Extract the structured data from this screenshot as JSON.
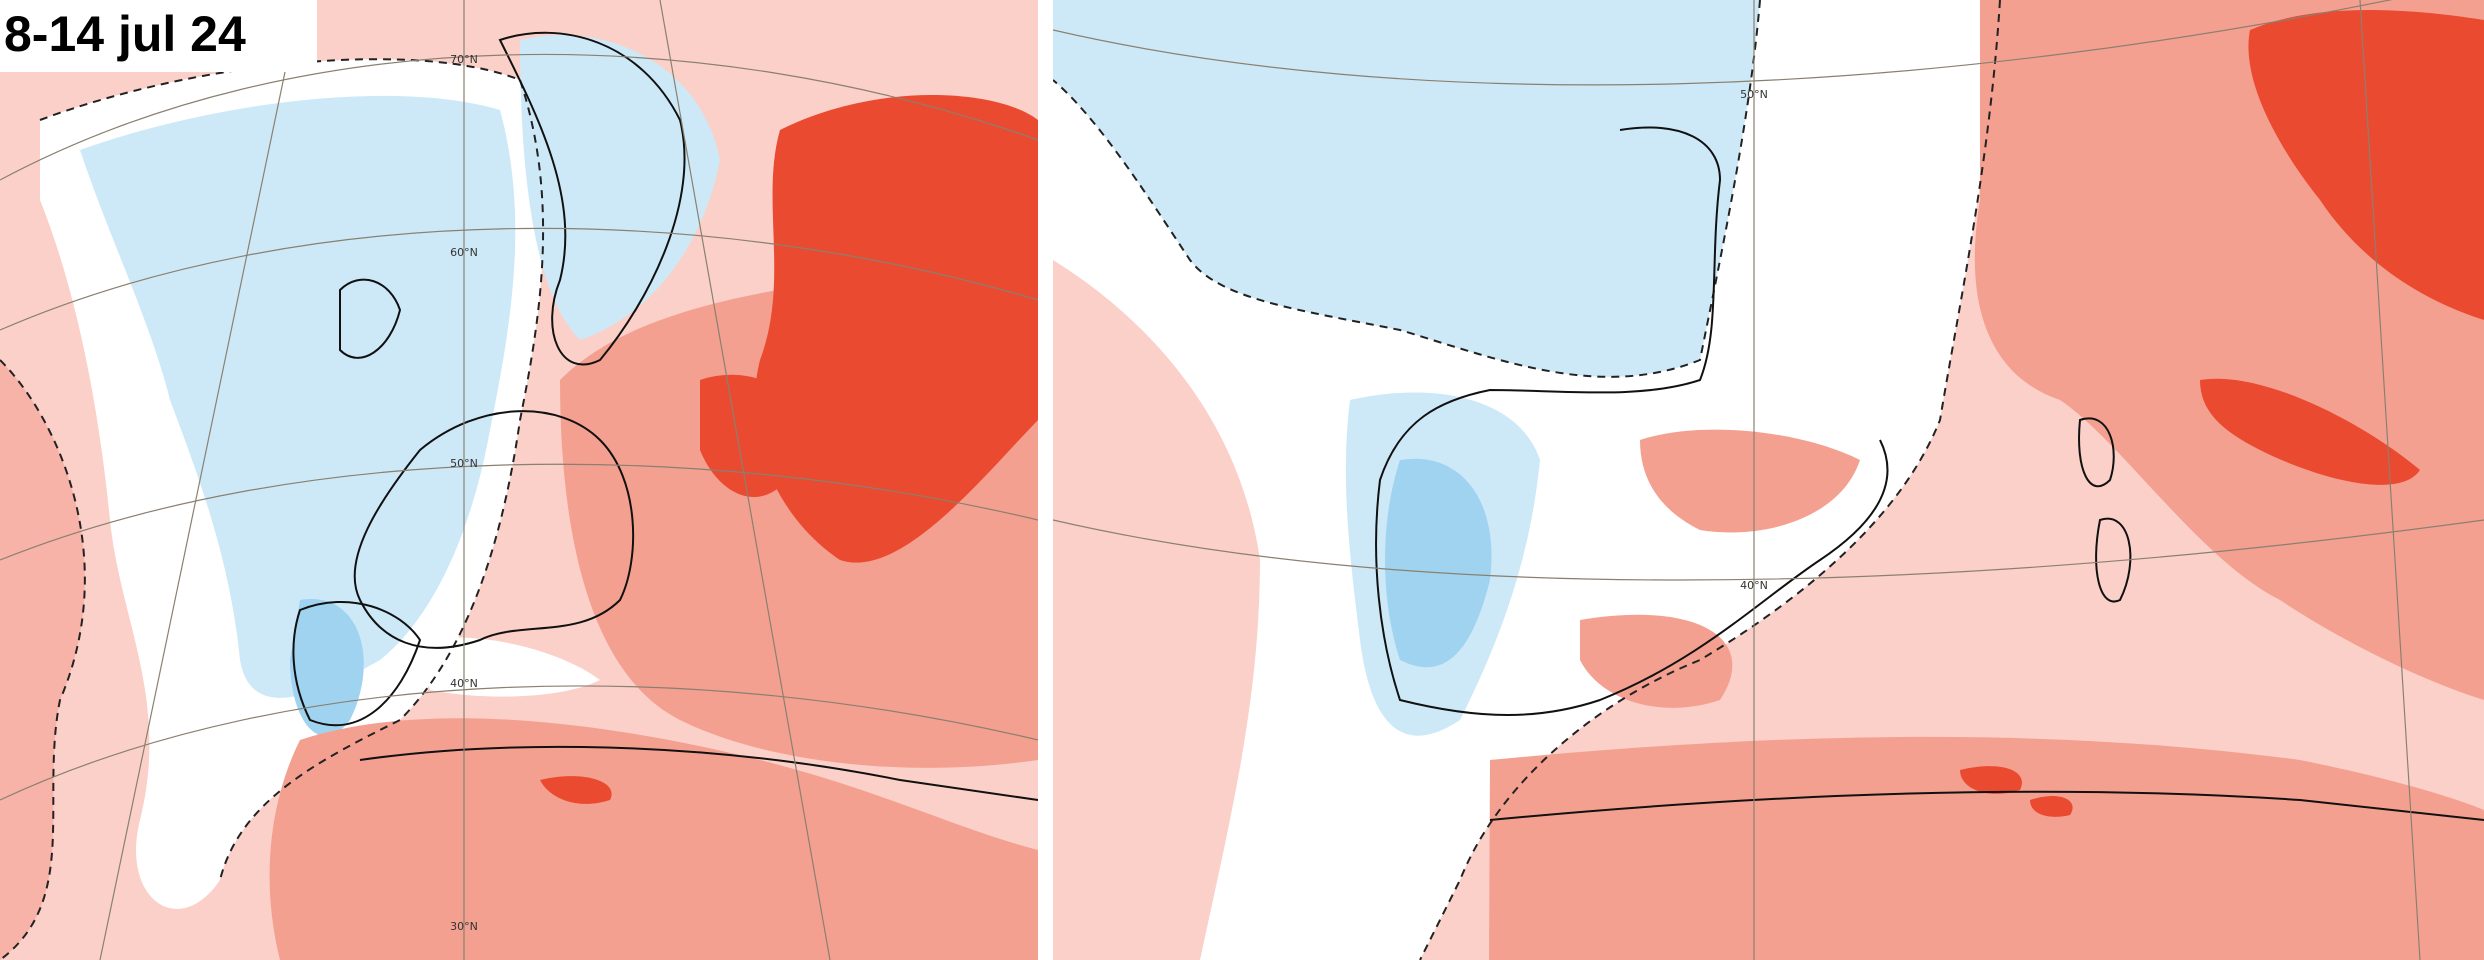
{
  "title": "8-14 jul 24",
  "left_map": {
    "latitude_labels": [
      "70°N",
      "60°N",
      "50°N",
      "40°N",
      "30°N"
    ]
  },
  "right_map": {
    "latitude_labels": [
      "50°N",
      "40°N"
    ]
  }
}
